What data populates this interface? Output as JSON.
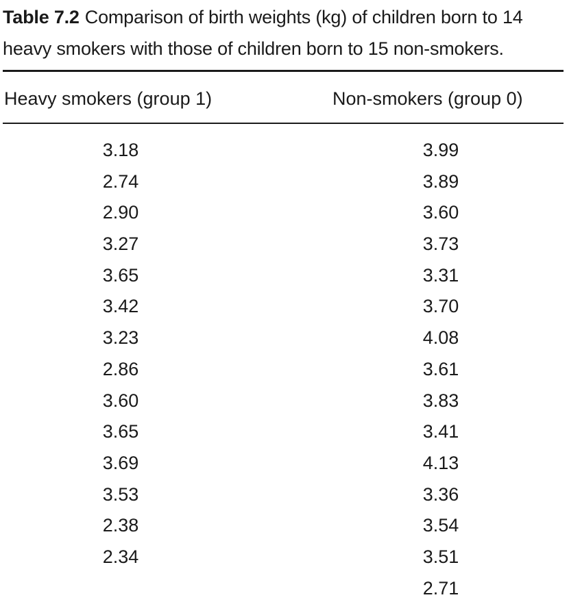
{
  "table": {
    "caption_label": "Table 7.2",
    "caption_text": "Comparison of birth weights (kg) of children born to 14 heavy smokers with those of children born to 15 non-smokers.",
    "columns": [
      "Heavy smokers (group 1)",
      "Non-smokers (group 0)"
    ],
    "heavy_smokers": [
      "3.18",
      "2.74",
      "2.90",
      "3.27",
      "3.65",
      "3.42",
      "3.23",
      "2.86",
      "3.60",
      "3.65",
      "3.69",
      "3.53",
      "2.38",
      "2.34"
    ],
    "non_smokers": [
      "3.99",
      "3.89",
      "3.60",
      "3.73",
      "3.31",
      "3.70",
      "4.08",
      "3.61",
      "3.83",
      "3.41",
      "4.13",
      "3.36",
      "3.54",
      "3.51",
      "2.71"
    ]
  }
}
